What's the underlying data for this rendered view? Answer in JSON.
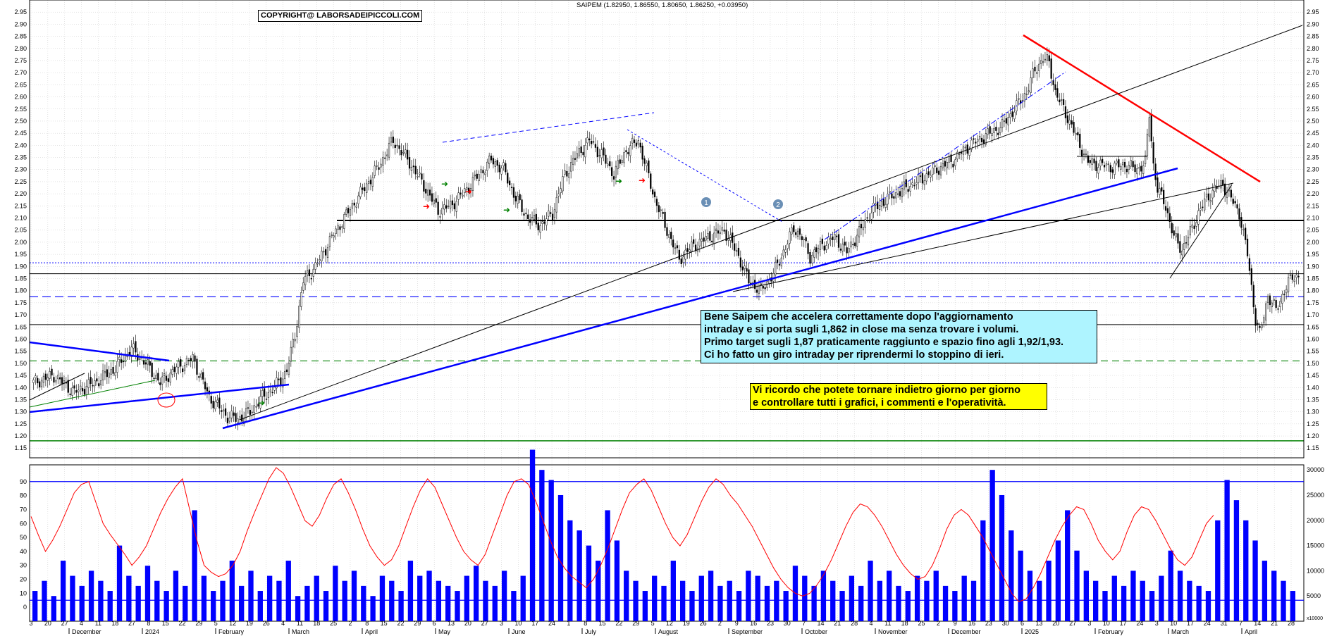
{
  "header": {
    "ticker_line": "SAIPEM (1.82950, 1.86550, 1.80650, 1.86250, +0.03950)",
    "copyright": "COPYRIGHT@ LABORSADEIPICCOLI.COM"
  },
  "notes": {
    "cyan": [
      "Bene Saipem che accelera correttamente dopo l'aggiornamento",
      "intraday e si porta sugli 1,862 in close ma senza trovare i volumi.",
      "Primo target sugli 1,87 praticamente raggiunto e spazio fino agli 1,92/1,93.",
      "Ci ho fatto un giro intraday per riprendermi lo stoppino di ieri."
    ],
    "yellow": [
      "Vi ricordo che potete tornare indietro giorno per giorno",
      "e controllare tutti i grafici, i commenti e l'operatività."
    ]
  },
  "markers": {
    "m1": "1",
    "m2": "2"
  },
  "colors": {
    "bull": "#ffffff",
    "bear": "#000000",
    "candle_stroke": "#000000",
    "rsi": "#ff0000",
    "volume": "#0000ff",
    "grid": "#c8c8c8",
    "trend_red": "#ff0000",
    "trend_blue": "#0000ff",
    "support": "#000000",
    "green_line": "#008000",
    "note_cyan": "#aef4ff",
    "note_yellow": "#ffff00"
  },
  "chart_data": [
    {
      "type": "candlestick",
      "title": "SAIPEM (1.82950, 1.86550, 1.80650, 1.86250, +0.03950)",
      "ylim": [
        1.11,
        3.0
      ],
      "y_ticks": [
        1.15,
        1.2,
        1.25,
        1.3,
        1.35,
        1.4,
        1.45,
        1.5,
        1.55,
        1.6,
        1.65,
        1.7,
        1.75,
        1.8,
        1.85,
        1.9,
        1.95,
        2.0,
        2.05,
        2.1,
        2.15,
        2.2,
        2.25,
        2.3,
        2.35,
        2.4,
        2.45,
        2.5,
        2.55,
        2.6,
        2.65,
        2.7,
        2.75,
        2.8,
        2.85,
        2.9,
        2.95
      ],
      "close_path": [
        [
          0,
          1.42
        ],
        [
          10,
          1.45
        ],
        [
          20,
          1.38
        ],
        [
          30,
          1.42
        ],
        [
          40,
          1.48
        ],
        [
          48,
          1.56
        ],
        [
          55,
          1.5
        ],
        [
          62,
          1.42
        ],
        [
          70,
          1.48
        ],
        [
          78,
          1.52
        ],
        [
          86,
          1.36
        ],
        [
          95,
          1.28
        ],
        [
          100,
          1.27
        ],
        [
          106,
          1.3
        ],
        [
          112,
          1.36
        ],
        [
          118,
          1.4
        ],
        [
          124,
          1.47
        ],
        [
          128,
          1.62
        ],
        [
          132,
          1.84
        ],
        [
          138,
          1.9
        ],
        [
          146,
          2.02
        ],
        [
          152,
          2.1
        ],
        [
          160,
          2.2
        ],
        [
          168,
          2.3
        ],
        [
          176,
          2.42
        ],
        [
          184,
          2.33
        ],
        [
          192,
          2.22
        ],
        [
          198,
          2.13
        ],
        [
          204,
          2.15
        ],
        [
          210,
          2.2
        ],
        [
          218,
          2.28
        ],
        [
          224,
          2.34
        ],
        [
          230,
          2.3
        ],
        [
          236,
          2.18
        ],
        [
          242,
          2.1
        ],
        [
          248,
          2.07
        ],
        [
          254,
          2.12
        ],
        [
          260,
          2.28
        ],
        [
          266,
          2.36
        ],
        [
          272,
          2.42
        ],
        [
          278,
          2.36
        ],
        [
          284,
          2.28
        ],
        [
          290,
          2.38
        ],
        [
          296,
          2.42
        ],
        [
          300,
          2.3
        ],
        [
          304,
          2.18
        ],
        [
          310,
          2.05
        ],
        [
          316,
          1.93
        ],
        [
          322,
          1.98
        ],
        [
          330,
          2.02
        ],
        [
          338,
          2.05
        ],
        [
          344,
          1.96
        ],
        [
          350,
          1.84
        ],
        [
          356,
          1.8
        ],
        [
          362,
          1.87
        ],
        [
          368,
          1.98
        ],
        [
          372,
          2.06
        ],
        [
          376,
          2.02
        ],
        [
          380,
          1.94
        ],
        [
          386,
          1.99
        ],
        [
          392,
          2.02
        ],
        [
          398,
          1.96
        ],
        [
          404,
          2.04
        ],
        [
          410,
          2.13
        ],
        [
          418,
          2.18
        ],
        [
          426,
          2.22
        ],
        [
          434,
          2.26
        ],
        [
          442,
          2.3
        ],
        [
          450,
          2.34
        ],
        [
          458,
          2.4
        ],
        [
          466,
          2.44
        ],
        [
          474,
          2.48
        ],
        [
          480,
          2.55
        ],
        [
          486,
          2.62
        ],
        [
          490,
          2.71
        ],
        [
          494,
          2.76
        ],
        [
          497,
          2.74
        ],
        [
          500,
          2.62
        ],
        [
          504,
          2.55
        ],
        [
          508,
          2.48
        ],
        [
          512,
          2.4
        ],
        [
          516,
          2.33
        ],
        [
          522,
          2.32
        ],
        [
          528,
          2.31
        ],
        [
          534,
          2.32
        ],
        [
          540,
          2.3
        ],
        [
          544,
          2.33
        ],
        [
          546,
          2.53
        ],
        [
          548,
          2.32
        ],
        [
          550,
          2.22
        ],
        [
          554,
          2.15
        ],
        [
          558,
          2.02
        ],
        [
          562,
          1.97
        ],
        [
          566,
          2.04
        ],
        [
          570,
          2.12
        ],
        [
          574,
          2.18
        ],
        [
          578,
          2.22
        ],
        [
          582,
          2.24
        ],
        [
          586,
          2.18
        ],
        [
          590,
          2.12
        ],
        [
          594,
          1.95
        ],
        [
          598,
          1.68
        ],
        [
          600,
          1.62
        ],
        [
          604,
          1.78
        ],
        [
          608,
          1.72
        ],
        [
          612,
          1.8
        ],
        [
          616,
          1.86
        ]
      ],
      "horizontal_levels": [
        2.09,
        1.915,
        1.87,
        1.775,
        1.66,
        1.51,
        1.18
      ],
      "n_bars": 620,
      "x_tick_labels": [
        "3",
        "20",
        "27",
        "4",
        "11",
        "18",
        "27",
        "8",
        "15",
        "22",
        "29",
        "5",
        "12",
        "19",
        "26",
        "4",
        "11",
        "18",
        "25",
        "2",
        "8",
        "15",
        "22",
        "29",
        "6",
        "13",
        "20",
        "27",
        "3",
        "10",
        "17",
        "24",
        "1",
        "8",
        "15",
        "22",
        "29",
        "5",
        "12",
        "19",
        "26",
        "2",
        "9",
        "16",
        "23",
        "30",
        "7",
        "14",
        "21",
        "28",
        "4",
        "11",
        "18",
        "25",
        "2",
        "9",
        "16",
        "23",
        "30",
        "6",
        "13",
        "20",
        "27",
        "3",
        "10",
        "17",
        "24",
        "3",
        "10",
        "17",
        "24",
        "31",
        "7",
        "14",
        "21",
        "28"
      ],
      "month_labels": [
        "December",
        "2024",
        "February",
        "March",
        "April",
        "May",
        "June",
        "July",
        "August",
        "September",
        "October",
        "November",
        "December",
        "2025",
        "February",
        "March",
        "April"
      ]
    },
    {
      "type": "line",
      "series": [
        {
          "values": [
            65,
            52,
            40,
            48,
            58,
            70,
            82,
            88,
            90,
            75,
            60,
            52,
            45,
            38,
            30,
            36,
            44,
            56,
            68,
            78,
            86,
            92,
            70,
            48,
            30,
            25,
            22,
            24,
            30,
            40,
            55,
            68,
            80,
            92,
            100,
            96,
            86,
            74,
            62,
            58,
            66,
            78,
            88,
            92,
            82,
            70,
            56,
            44,
            36,
            30,
            34,
            44,
            58,
            72,
            84,
            92,
            86,
            74,
            62,
            50,
            40,
            34,
            30,
            38,
            52,
            66,
            80,
            90,
            92,
            88,
            76,
            62,
            48,
            36,
            28,
            22,
            18,
            14,
            20,
            30,
            42,
            56,
            70,
            82,
            88,
            92,
            84,
            72,
            60,
            50,
            44,
            52,
            64,
            76,
            86,
            92,
            88,
            80,
            74,
            66,
            58,
            48,
            38,
            28,
            20,
            14,
            10,
            8,
            10,
            16,
            24,
            34,
            46,
            58,
            68,
            74,
            72,
            66,
            58,
            48,
            38,
            30,
            24,
            20,
            22,
            30,
            42,
            56,
            66,
            70,
            66,
            58,
            50,
            40,
            30,
            20,
            10,
            4,
            6,
            14,
            24,
            36,
            48,
            58,
            66,
            72,
            70,
            60,
            48,
            40,
            34,
            40,
            54,
            66,
            72,
            70,
            62,
            52,
            42,
            34,
            30,
            36,
            48,
            60,
            66
          ]
        }
      ],
      "ylim": [
        -10,
        102
      ],
      "y_ticks": [
        0,
        10,
        20,
        30,
        40,
        50,
        60,
        70,
        80,
        90
      ],
      "levels": [
        90,
        5
      ]
    },
    {
      "type": "bar",
      "series": [
        {
          "values": [
            6,
            8,
            5,
            12,
            9,
            7,
            10,
            8,
            6,
            15,
            9,
            7,
            11,
            8,
            6,
            10,
            7,
            22,
            9,
            6,
            8,
            12,
            7,
            10,
            6,
            9,
            8,
            12,
            5,
            7,
            9,
            6,
            11,
            8,
            10,
            7,
            5,
            9,
            8,
            6,
            12,
            9,
            10,
            8,
            7,
            6,
            9,
            11,
            8,
            7,
            10,
            6,
            9,
            34,
            30,
            28,
            25,
            20,
            18,
            15,
            12,
            22,
            16,
            10,
            8,
            6,
            9,
            7,
            12,
            8,
            6,
            9,
            10,
            7,
            8,
            6,
            10,
            9,
            7,
            8,
            6,
            11,
            9,
            7,
            10,
            8,
            6,
            9,
            7,
            12,
            8,
            10,
            7,
            6,
            9,
            8,
            10,
            7,
            6,
            9,
            8,
            20,
            30,
            25,
            18,
            14,
            10,
            8,
            12,
            16,
            22,
            14,
            10,
            8,
            6,
            9,
            7,
            10,
            8,
            6,
            9,
            14,
            10,
            8,
            7,
            6,
            20,
            28,
            24,
            20,
            16,
            12,
            10,
            8,
            6
          ]
        }
      ],
      "ylim": [
        0,
        31000
      ],
      "y_ticks": [
        5000,
        10000,
        15000,
        20000,
        25000,
        30000
      ],
      "y_tick_labels": [
        "5000",
        "10000",
        "15000",
        "20000",
        "25000",
        "30000"
      ],
      "unit_label": "x10000"
    }
  ]
}
